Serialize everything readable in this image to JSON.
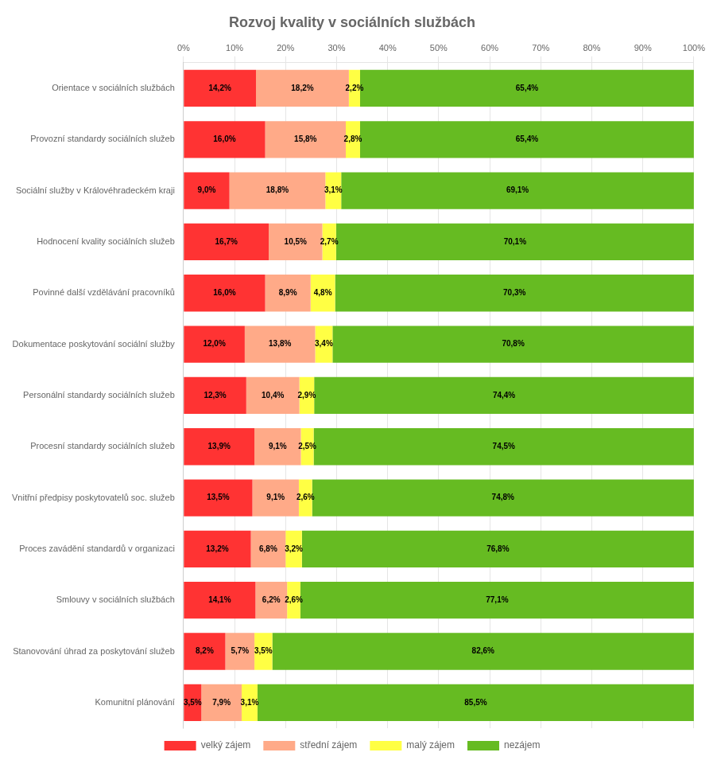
{
  "chart_data": {
    "type": "bar",
    "title": "Rozvoj kvality v sociálních službách",
    "orientation": "horizontal",
    "stacked": true,
    "grid": true,
    "legend": "bottom",
    "data_labels": true,
    "categories": [
      "Orientace v sociálních službách",
      "Provozní standardy sociálních služeb",
      "Sociální služby v Královéhradeckém kraji",
      "Hodnocení kvality sociálních služeb",
      "Povinné další vzdělávání pracovníků",
      "Dokumentace poskytování sociální služby",
      "Personální standardy sociálních služeb",
      "Procesní standardy sociálních služeb",
      "Vnitřní předpisy poskytovatelů soc. služeb",
      "Proces zavádění standardů v organizaci",
      "Smlouvy v sociálních službách",
      "Stanovování úhrad za poskytování služeb",
      "Komunitní plánování"
    ],
    "series": [
      {
        "name": "velký zájem",
        "color": "#FF3333",
        "values": [
          14.2,
          16.0,
          9.0,
          16.7,
          16.0,
          12.0,
          12.3,
          13.9,
          13.5,
          13.2,
          14.1,
          8.2,
          3.5
        ],
        "value_labels": [
          "14,2%",
          "16,0%",
          "9,0%",
          "16,7%",
          "16,0%",
          "12,0%",
          "12,3%",
          "13,9%",
          "13,5%",
          "13,2%",
          "14,1%",
          "8,2%",
          "3,5%"
        ]
      },
      {
        "name": "střední zájem",
        "color": "#FFAA88",
        "values": [
          18.2,
          15.8,
          18.8,
          10.5,
          8.9,
          13.8,
          10.4,
          9.1,
          9.1,
          6.8,
          6.2,
          5.7,
          7.9
        ],
        "value_labels": [
          "18,2%",
          "15,8%",
          "18,8%",
          "10,5%",
          "8,9%",
          "13,8%",
          "10,4%",
          "9,1%",
          "9,1%",
          "6,8%",
          "6,2%",
          "5,7%",
          "7,9%"
        ]
      },
      {
        "name": "malý zájem",
        "color": "#FFFF44",
        "values": [
          2.2,
          2.8,
          3.1,
          2.7,
          4.8,
          3.4,
          2.9,
          2.5,
          2.6,
          3.2,
          2.6,
          3.5,
          3.1
        ],
        "value_labels": [
          "2,2%",
          "2,8%",
          "3,1%",
          "2,7%",
          "4,8%",
          "3,4%",
          "2,9%",
          "2,5%",
          "2,6%",
          "3,2%",
          "2,6%",
          "3,5%",
          "3,1%"
        ]
      },
      {
        "name": "nezájem",
        "color": "#66BB22",
        "values": [
          65.4,
          65.4,
          69.1,
          70.1,
          70.3,
          70.8,
          74.4,
          74.5,
          74.8,
          76.8,
          77.1,
          82.6,
          85.5
        ],
        "value_labels": [
          "65,4%",
          "65,4%",
          "69,1%",
          "70,1%",
          "70,3%",
          "70,8%",
          "74,4%",
          "74,5%",
          "74,8%",
          "76,8%",
          "77,1%",
          "82,6%",
          "85,5%"
        ]
      }
    ],
    "xlim": [
      0,
      100
    ],
    "xticks": [
      {
        "value": 0,
        "label": "0%"
      },
      {
        "value": 10,
        "label": "10%"
      },
      {
        "value": 20,
        "label": "20%"
      },
      {
        "value": 30,
        "label": "30%"
      },
      {
        "value": 40,
        "label": "40%"
      },
      {
        "value": 50,
        "label": "50%"
      },
      {
        "value": 60,
        "label": "60%"
      },
      {
        "value": 70,
        "label": "70%"
      },
      {
        "value": 80,
        "label": "80%"
      },
      {
        "value": 90,
        "label": "90%"
      },
      {
        "value": 100,
        "label": "100%"
      }
    ]
  }
}
